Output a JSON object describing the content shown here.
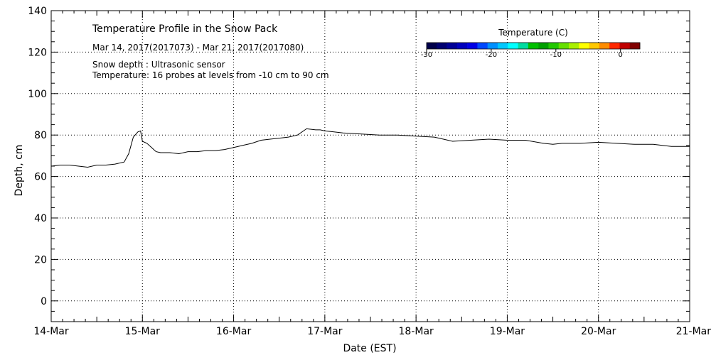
{
  "chart_data": {
    "type": "line",
    "title": "Temperature Profile in the Snow Pack",
    "subtitle": "Mar 14, 2017(2017073) - Mar 21, 2017(2017080)",
    "annotations": [
      "Snow depth : Ultrasonic sensor",
      "Temperature: 16 probes at levels from -10 cm to 90 cm"
    ],
    "xlabel": "Date (EST)",
    "ylabel": "Depth, cm",
    "x_tick_labels": [
      "14-Mar",
      "15-Mar",
      "16-Mar",
      "17-Mar",
      "18-Mar",
      "19-Mar",
      "20-Mar",
      "21-Mar"
    ],
    "xlim": [
      0,
      7
    ],
    "ylim": [
      -10,
      140
    ],
    "y_ticks": [
      0,
      20,
      40,
      60,
      80,
      100,
      120,
      140
    ],
    "grid": true,
    "series": [
      {
        "name": "Snow depth",
        "color": "#000000",
        "x": [
          0,
          0.1,
          0.2,
          0.3,
          0.4,
          0.5,
          0.6,
          0.7,
          0.8,
          0.85,
          0.9,
          0.95,
          0.98,
          1.0,
          1.05,
          1.1,
          1.15,
          1.2,
          1.3,
          1.4,
          1.5,
          1.6,
          1.7,
          1.8,
          1.9,
          2.0,
          2.1,
          2.2,
          2.3,
          2.4,
          2.5,
          2.6,
          2.7,
          2.8,
          2.9,
          2.95,
          3.0,
          3.1,
          3.2,
          3.4,
          3.6,
          3.8,
          4.0,
          4.2,
          4.3,
          4.4,
          4.6,
          4.8,
          5.0,
          5.2,
          5.4,
          5.5,
          5.6,
          5.8,
          6.0,
          6.2,
          6.4,
          6.6,
          6.8,
          7.0
        ],
        "values": [
          65,
          65.5,
          65.5,
          65,
          64.5,
          65.5,
          65.5,
          66,
          67,
          71,
          79,
          81.5,
          82,
          77,
          76,
          74,
          72,
          71.5,
          71.5,
          71,
          72,
          72,
          72.5,
          72.5,
          73,
          74,
          75,
          76,
          77.5,
          78,
          78.5,
          79,
          80,
          83,
          82.5,
          82.5,
          82,
          81.5,
          81,
          80.5,
          80,
          80,
          79.5,
          79,
          78,
          77,
          77.5,
          78,
          77.5,
          77.5,
          76,
          75.5,
          76,
          76,
          76.5,
          76,
          75.5,
          75.5,
          74.5,
          74.5
        ]
      }
    ]
  },
  "colorbar": {
    "title": "Temperature (C)",
    "tick_labels": [
      "-30",
      "-20",
      "-10",
      "0"
    ],
    "min": -30,
    "max": 3,
    "ticks": [
      -30,
      -20,
      -10,
      0
    ],
    "colors": [
      "#00004a",
      "#000070",
      "#000096",
      "#0000be",
      "#0000e6",
      "#0048ff",
      "#0090ff",
      "#00c8ff",
      "#00ffff",
      "#00dca0",
      "#00c000",
      "#00a000",
      "#22c800",
      "#66e000",
      "#aaf000",
      "#ffff00",
      "#ffc800",
      "#ff8c00",
      "#ff2800",
      "#c00000",
      "#800000"
    ]
  }
}
